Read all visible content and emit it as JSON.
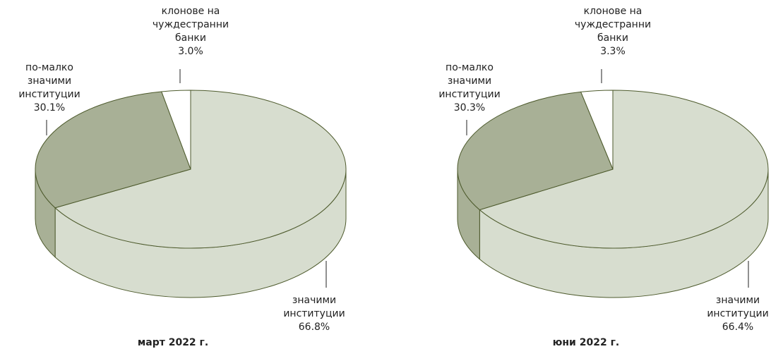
{
  "chart_data": [
    {
      "type": "pie",
      "title": "март 2022 г.",
      "categories": [
        "значими\nинституции",
        "по-малко\nзначими\nинституции",
        "клонове на\nчуждестранни\nбанки"
      ],
      "values": [
        66.8,
        30.1,
        3.0
      ],
      "value_labels": [
        "66.8%",
        "30.1%",
        "3.0%"
      ],
      "colors": [
        "#d7ddcf",
        "#a8b096",
        "#ffffff"
      ]
    },
    {
      "type": "pie",
      "title": "юни 2022 г.",
      "categories": [
        "значими\nинституции",
        "по-малко\nзначими\nинституции",
        "клонове на\nчуждестранни\nбанки"
      ],
      "values": [
        66.4,
        30.3,
        3.3
      ],
      "value_labels": [
        "66.4%",
        "30.3%",
        "3.3%"
      ],
      "colors": [
        "#d7ddcf",
        "#a8b096",
        "#ffffff"
      ]
    }
  ]
}
